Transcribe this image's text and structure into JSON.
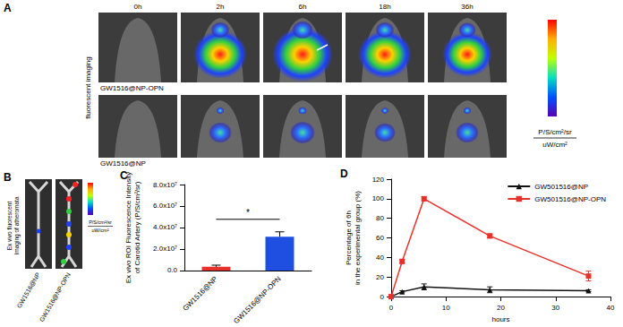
{
  "panel_labels": [
    "A",
    "B",
    "C",
    "D"
  ],
  "imaging": {
    "side_label": "fluorescent imaging",
    "timepoints": [
      "0h",
      "2h",
      "6h",
      "18h",
      "36h"
    ],
    "rows": [
      "GW1516@NP-OPN",
      "GW1516@NP"
    ],
    "colorbar_units": [
      "P/S/cm²/sr",
      "uW/cm²"
    ]
  },
  "ex_vivo": {
    "side_label": [
      "Ex vivo fluorescent",
      "Imaging of atheromata"
    ],
    "samples": [
      "GW1516@NP",
      "GW1516@NP-OPN"
    ],
    "colorbar_units": [
      "P/S/cm²/sr",
      "uW/cm²"
    ]
  },
  "chart_data": [
    {
      "type": "bar",
      "y_label": "Ex vivo ROI Fluorescence Intensity\nof Carotid Artery (P/S/cm²/sr)",
      "categories": [
        "GW1516@NP",
        "GW1516@NP-OPN"
      ],
      "values": [
        3500000,
        31500000
      ],
      "errors": [
        1500000,
        4500000
      ],
      "colors": [
        "#e8312a",
        "#1f4fe0"
      ],
      "ylim": [
        0,
        80000000
      ],
      "yticks": [
        {
          "value": 0,
          "label": "0.0"
        },
        {
          "value": 20000000,
          "label": "2.0x10⁷"
        },
        {
          "value": 40000000,
          "label": "4.0x10⁷"
        },
        {
          "value": 60000000,
          "label": "6.0x10⁷"
        },
        {
          "value": 80000000,
          "label": "8.0x10⁷"
        }
      ],
      "grid": false,
      "annotations": [
        {
          "text": "*",
          "between": [
            "GW1516@NP",
            "GW1516@NP-OPN"
          ]
        }
      ]
    },
    {
      "type": "line",
      "x_label": "hours",
      "y_label": "Percentage of 6h\nin the experimental group (%)",
      "x": [
        0,
        2,
        6,
        18,
        36
      ],
      "series": [
        {
          "name": "GW501516@NP",
          "color": "#111111",
          "marker": "triangle",
          "values": [
            0,
            5,
            10,
            7,
            6
          ],
          "errors": [
            0.5,
            1,
            3,
            3,
            1
          ]
        },
        {
          "name": "GW501516@NP-OPN",
          "color": "#e8312a",
          "marker": "square",
          "values": [
            0,
            36,
            100,
            62,
            21
          ],
          "errors": [
            0.5,
            2,
            2,
            2,
            5
          ]
        }
      ],
      "xlim": [
        0,
        40
      ],
      "xticks": [
        0,
        10,
        20,
        30,
        40
      ],
      "ylim": [
        0,
        120
      ],
      "yticks": [
        0,
        20,
        40,
        60,
        80,
        100,
        120
      ],
      "grid": false,
      "legend": "upper right"
    }
  ]
}
